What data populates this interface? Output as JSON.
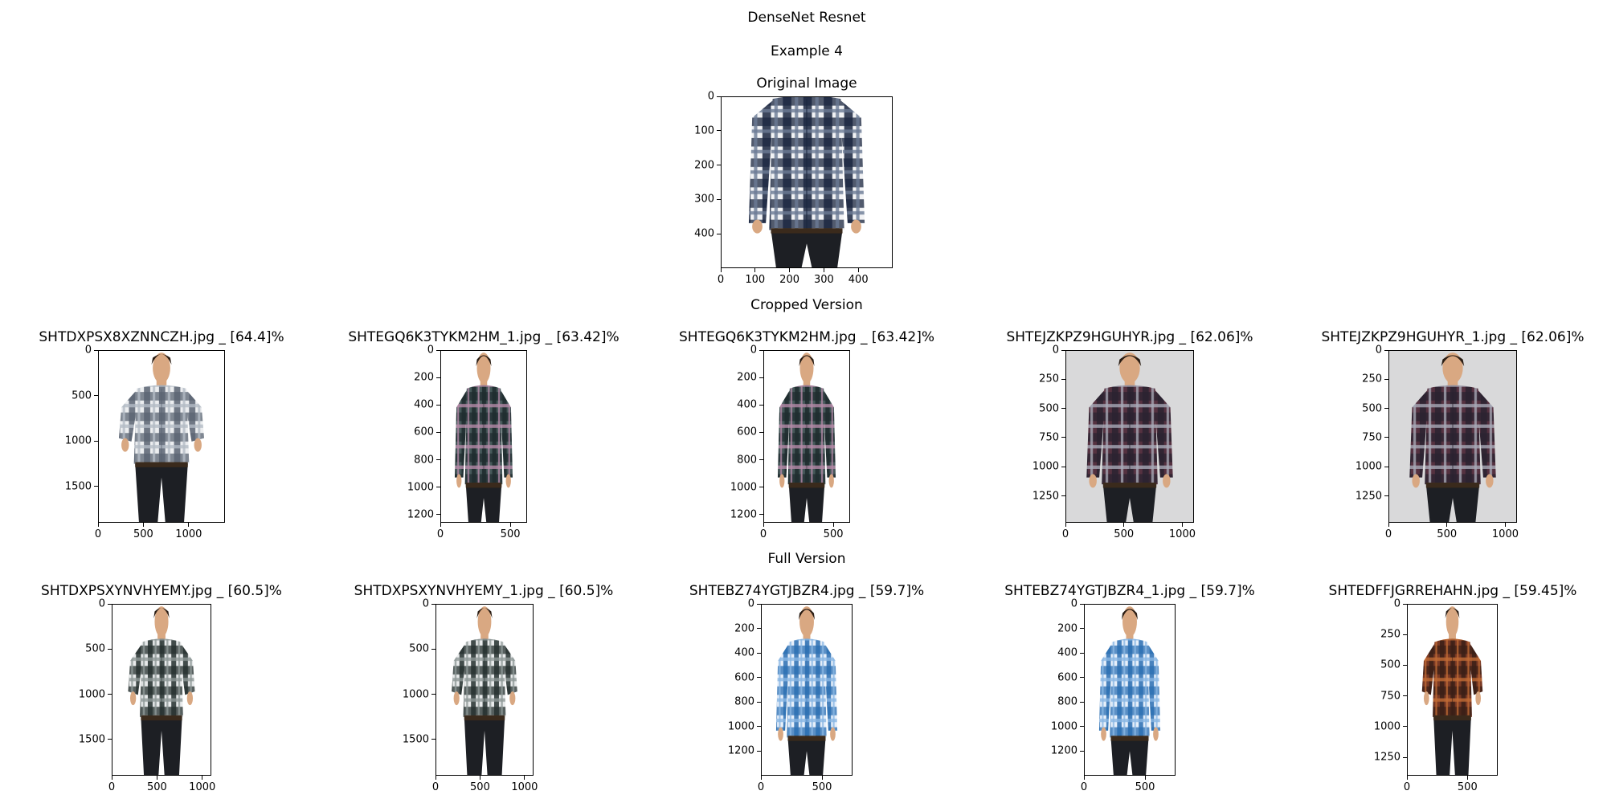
{
  "figure": {
    "title_lines": [
      "DenseNet Resnet",
      "Example 4"
    ],
    "section_labels": {
      "cropped": "Cropped Version",
      "full": "Full Version"
    }
  },
  "chart_data": [
    {
      "type": "image",
      "title": "Original Image",
      "xlim": [
        0,
        500
      ],
      "ylim": [
        500,
        0
      ],
      "xticks": [
        0,
        100,
        200,
        300,
        400
      ],
      "yticks": [
        0,
        100,
        200,
        300,
        400
      ],
      "shirt": "navy-white-plaid-long-sleeve",
      "model": "male"
    },
    {
      "type": "image",
      "title": "SHTDXPSX8XZNNCZH.jpg _ [64.4]%",
      "xlim": [
        0,
        1400
      ],
      "ylim": [
        1900,
        0
      ],
      "xticks": [
        0,
        500,
        1000
      ],
      "yticks": [
        0,
        500,
        1000,
        1500
      ],
      "shirt": "grey-white-check-short-sleeve",
      "model": "female"
    },
    {
      "type": "image",
      "title": "SHTEGQ6K3TYKM2HM_1.jpg _ [63.42]%",
      "xlim": [
        0,
        620
      ],
      "ylim": [
        1260,
        0
      ],
      "xticks": [
        0,
        500
      ],
      "yticks": [
        0,
        200,
        400,
        600,
        800,
        1000,
        1200
      ],
      "shirt": "green-pink-plaid-long-sleeve",
      "model": "male"
    },
    {
      "type": "image",
      "title": "SHTEGQ6K3TYKM2HM.jpg _ [63.42]%",
      "xlim": [
        0,
        620
      ],
      "ylim": [
        1260,
        0
      ],
      "xticks": [
        0,
        500
      ],
      "yticks": [
        0,
        200,
        400,
        600,
        800,
        1000,
        1200
      ],
      "shirt": "green-pink-plaid-long-sleeve",
      "model": "male"
    },
    {
      "type": "image",
      "title": "SHTEJZKPZ9HGUHYR.jpg _ [62.06]%",
      "xlim": [
        0,
        1100
      ],
      "ylim": [
        1480,
        0
      ],
      "xticks": [
        0,
        500,
        1000
      ],
      "yticks": [
        0,
        250,
        500,
        750,
        1000,
        1250
      ],
      "shirt": "maroon-grey-plaid",
      "model": "male"
    },
    {
      "type": "image",
      "title": "SHTEJZKPZ9HGUHYR_1.jpg _ [62.06]%",
      "xlim": [
        0,
        1100
      ],
      "ylim": [
        1480,
        0
      ],
      "xticks": [
        0,
        500,
        1000
      ],
      "yticks": [
        0,
        250,
        500,
        750,
        1000,
        1250
      ],
      "shirt": "maroon-grey-plaid",
      "model": "male"
    },
    {
      "type": "image",
      "title": "SHTDXPSXYNVHYEMY.jpg _ [60.5]%",
      "xlim": [
        0,
        1100
      ],
      "ylim": [
        1900,
        0
      ],
      "xticks": [
        0,
        500,
        1000
      ],
      "yticks": [
        0,
        500,
        1000,
        1500
      ],
      "shirt": "black-white-check-short-sleeve",
      "model": "female"
    },
    {
      "type": "image",
      "title": "SHTDXPSXYNVHYEMY_1.jpg _ [60.5]%",
      "xlim": [
        0,
        1100
      ],
      "ylim": [
        1900,
        0
      ],
      "xticks": [
        0,
        500,
        1000
      ],
      "yticks": [
        0,
        500,
        1000,
        1500
      ],
      "shirt": "black-white-check-short-sleeve",
      "model": "female"
    },
    {
      "type": "image",
      "title": "SHTEBZ74YGTJBZR4.jpg _ [59.7]%",
      "xlim": [
        0,
        750
      ],
      "ylim": [
        1400,
        0
      ],
      "xticks": [
        0,
        500
      ],
      "yticks": [
        0,
        200,
        400,
        600,
        800,
        1000,
        1200
      ],
      "shirt": "blue-white-check-long-sleeve",
      "model": "male"
    },
    {
      "type": "image",
      "title": "SHTEBZ74YGTJBZR4_1.jpg _ [59.7]%",
      "xlim": [
        0,
        750
      ],
      "ylim": [
        1400,
        0
      ],
      "xticks": [
        0,
        500
      ],
      "yticks": [
        0,
        200,
        400,
        600,
        800,
        1000,
        1200
      ],
      "shirt": "blue-white-check-long-sleeve",
      "model": "male"
    },
    {
      "type": "image",
      "title": "SHTEDFFJGRREHAHN.jpg _ [59.45]%",
      "xlim": [
        0,
        750
      ],
      "ylim": [
        1400,
        0
      ],
      "xticks": [
        0,
        500
      ],
      "yticks": [
        0,
        250,
        500,
        750,
        1000,
        1250
      ],
      "shirt": "brown-orange-plaid",
      "model": "female"
    }
  ]
}
